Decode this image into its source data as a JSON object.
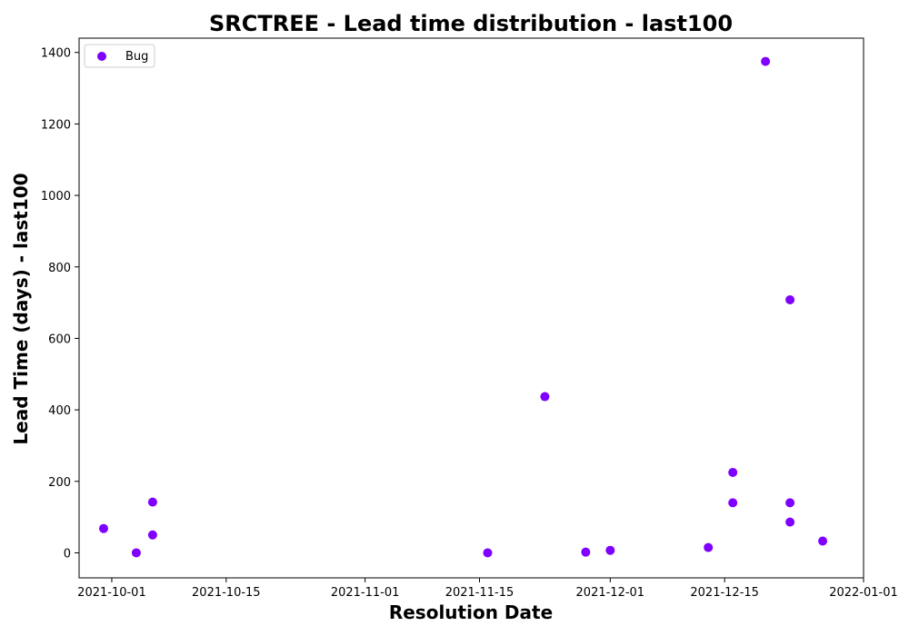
{
  "chart_data": {
    "type": "scatter",
    "title": "SRCTREE - Lead time distribution - last100",
    "xlabel": "Resolution Date",
    "ylabel": "Lead Time (days) - last100",
    "x_axis": "date",
    "xlim": [
      "2021-09-27",
      "2022-01-01"
    ],
    "ylim": [
      -70,
      1440
    ],
    "xticks": [
      "2021-10-01",
      "2021-10-15",
      "2021-11-01",
      "2021-11-15",
      "2021-12-01",
      "2021-12-15",
      "2022-01-01"
    ],
    "yticks": [
      0,
      200,
      400,
      600,
      800,
      1000,
      1200,
      1400
    ],
    "grid": false,
    "legend_position": "top-left",
    "series": [
      {
        "name": "Bug",
        "color": "#7f00ff",
        "points": [
          {
            "x": "2021-09-30",
            "y": 68
          },
          {
            "x": "2021-10-04",
            "y": 0
          },
          {
            "x": "2021-10-06",
            "y": 50
          },
          {
            "x": "2021-10-06",
            "y": 142
          },
          {
            "x": "2021-11-16",
            "y": 0
          },
          {
            "x": "2021-11-23",
            "y": 437
          },
          {
            "x": "2021-11-28",
            "y": 2
          },
          {
            "x": "2021-12-01",
            "y": 7
          },
          {
            "x": "2021-12-13",
            "y": 15
          },
          {
            "x": "2021-12-16",
            "y": 225
          },
          {
            "x": "2021-12-16",
            "y": 140
          },
          {
            "x": "2021-12-20",
            "y": 1375
          },
          {
            "x": "2021-12-23",
            "y": 708
          },
          {
            "x": "2021-12-23",
            "y": 140
          },
          {
            "x": "2021-12-23",
            "y": 86
          },
          {
            "x": "2021-12-27",
            "y": 33
          }
        ]
      }
    ]
  }
}
